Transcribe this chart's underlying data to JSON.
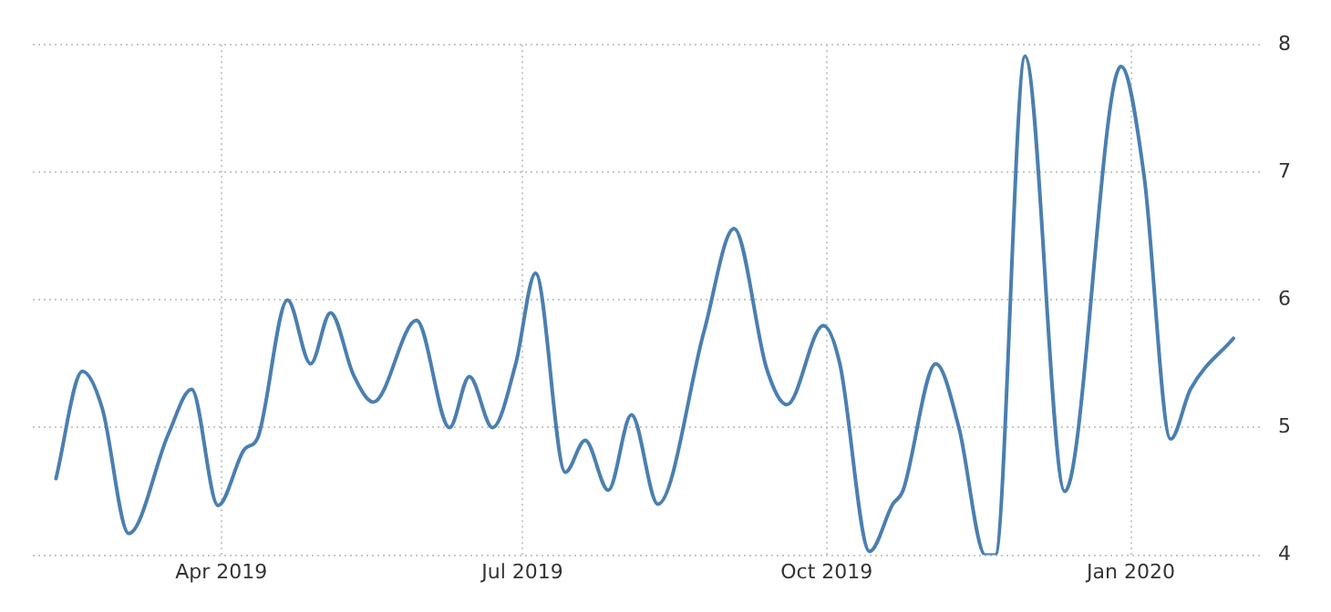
{
  "chart_data": {
    "type": "line",
    "x": [
      "2019-02-10",
      "2019-02-18",
      "2019-02-24",
      "2019-03-04",
      "2019-03-16",
      "2019-03-23",
      "2019-03-31",
      "2019-04-08",
      "2019-04-12",
      "2019-04-21",
      "2019-04-28",
      "2019-05-04",
      "2019-05-11",
      "2019-05-17",
      "2019-05-30",
      "2019-06-09",
      "2019-06-15",
      "2019-06-22",
      "2019-06-29",
      "2019-07-05",
      "2019-07-14",
      "2019-07-20",
      "2019-07-27",
      "2019-08-03",
      "2019-08-11",
      "2019-08-25",
      "2019-09-03",
      "2019-09-13",
      "2019-09-19",
      "2019-09-30",
      "2019-10-05",
      "2019-10-14",
      "2019-10-21",
      "2019-10-24",
      "2019-11-03",
      "2019-11-10",
      "2019-11-18",
      "2019-11-21",
      "2019-11-30",
      "2019-12-12",
      "2019-12-29",
      "2020-01-05",
      "2020-01-13",
      "2020-01-19",
      "2020-02-01"
    ],
    "series": [
      {
        "color": "#4a7fb0",
        "values": [
          4.6,
          5.44,
          5.15,
          4.17,
          4.95,
          5.3,
          4.39,
          4.83,
          4.92,
          6.0,
          5.5,
          5.9,
          5.41,
          5.2,
          5.84,
          5.0,
          5.4,
          5.0,
          5.5,
          6.21,
          4.65,
          4.9,
          4.51,
          5.1,
          4.4,
          5.76,
          6.56,
          5.45,
          5.18,
          5.8,
          5.5,
          4.03,
          4.4,
          4.5,
          5.5,
          5.0,
          4.0,
          4.0,
          7.91,
          4.5,
          7.83,
          6.97,
          4.91,
          5.3,
          5.7
        ]
      }
    ],
    "xlim": [
      "2019-02-03",
      "2020-02-09"
    ],
    "xticks": [
      {
        "value": "2019-04-01",
        "label": "Apr 2019"
      },
      {
        "value": "2019-07-01",
        "label": "Jul 2019"
      },
      {
        "value": "2019-10-01",
        "label": "Oct 2019"
      },
      {
        "value": "2020-01-01",
        "label": "Jan 2020"
      }
    ],
    "ylim": [
      4,
      8
    ],
    "yticks": [
      4,
      5,
      6,
      7,
      8
    ],
    "grid": true,
    "legend": false,
    "marker": "none",
    "line_style": "solid"
  }
}
